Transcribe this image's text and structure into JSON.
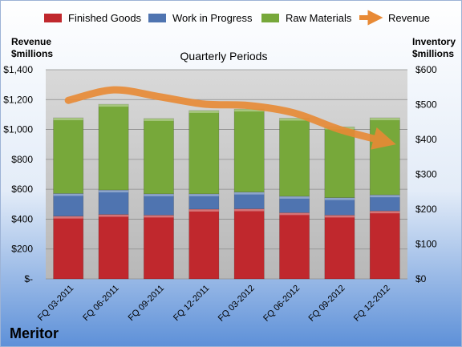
{
  "company": "Meritor",
  "chart_data": {
    "type": "bar",
    "subtitle": "Quarterly Periods",
    "left_axis_label": [
      "Revenue",
      "$millions"
    ],
    "right_axis_label": [
      "Inventory",
      "$millions"
    ],
    "categories": [
      "FQ 03-2011",
      "FQ 06-2011",
      "FQ 09-2011",
      "FQ 12-2011",
      "FQ 03-2012",
      "FQ 06-2012",
      "FQ 09-2012",
      "FQ 12-2012"
    ],
    "stacked": true,
    "series": [
      {
        "name": "Finished Goods",
        "axis": "right",
        "color": "#c0282d",
        "values": [
          180,
          185,
          183,
          200,
          201,
          190,
          183,
          195
        ]
      },
      {
        "name": "Work in Progress",
        "axis": "right",
        "color": "#4f74b0",
        "values": [
          65,
          70,
          61,
          44,
          48,
          47,
          50,
          46
        ]
      },
      {
        "name": "Raw Materials",
        "axis": "right",
        "color": "#77a83a",
        "values": [
          217,
          246,
          216,
          239,
          238,
          224,
          203,
          221
        ]
      },
      {
        "name": "Revenue",
        "axis": "left",
        "type": "line",
        "color": "#e88a35",
        "values": [
          1195,
          1265,
          1220,
          1170,
          1160,
          1110,
          1000,
          920
        ]
      }
    ],
    "left_axis": {
      "min": 0,
      "max": 1400,
      "step": 200,
      "ticks": [
        "$-",
        "$200",
        "$400",
        "$600",
        "$800",
        "$1,000",
        "$1,200",
        "$1,400"
      ]
    },
    "right_axis": {
      "min": 0,
      "max": 600,
      "step": 100,
      "ticks": [
        "$0",
        "$100",
        "$200",
        "$300",
        "$400",
        "$500",
        "$600"
      ]
    },
    "legend_position": "top",
    "grid": true
  }
}
